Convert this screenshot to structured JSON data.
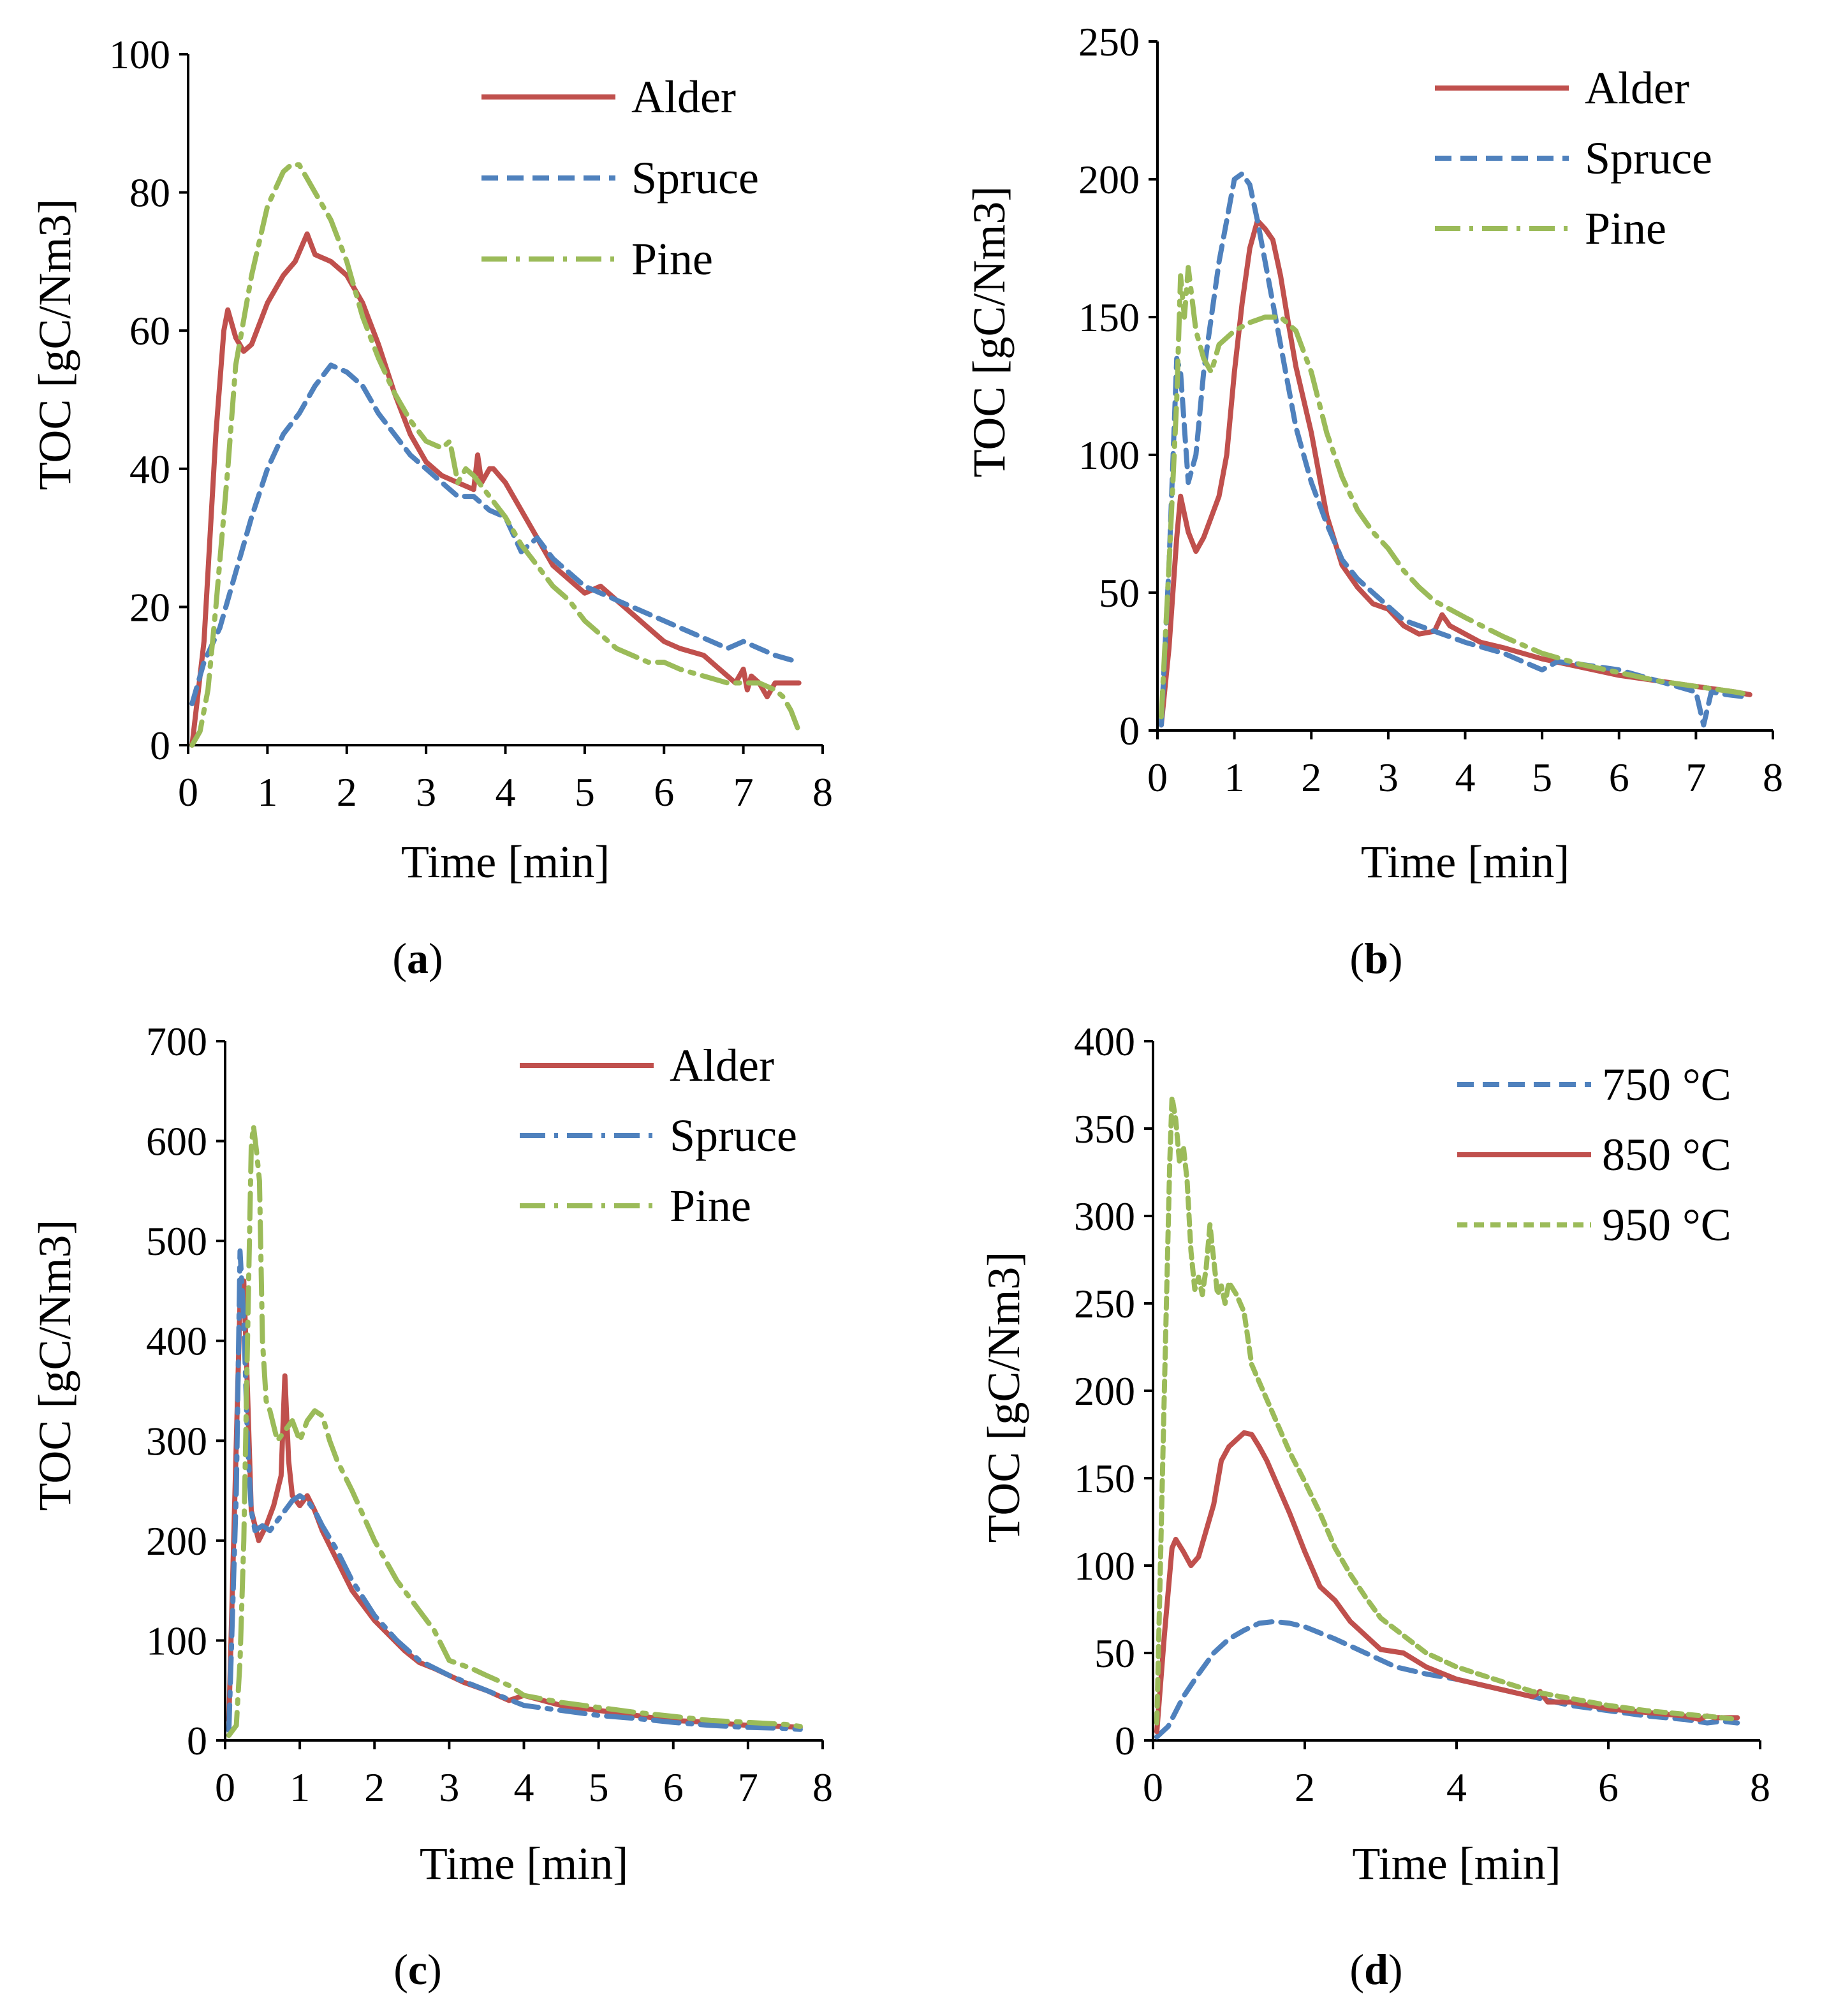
{
  "colors": {
    "alder": "#c0504d",
    "spruce": "#4f81bd",
    "pine": "#9bbb59"
  },
  "chart_data": [
    {
      "id": "a",
      "type": "line",
      "caption": "a",
      "xlabel": "Time [min]",
      "ylabel": "TOC [gC/Nm3]",
      "xlim": [
        0,
        8
      ],
      "ylim": [
        0,
        100
      ],
      "xticks": [
        0,
        1,
        2,
        3,
        4,
        5,
        6,
        7,
        8
      ],
      "yticks": [
        0,
        20,
        40,
        60,
        80,
        100
      ],
      "legend_position": "top-right",
      "series": [
        {
          "name": "Alder",
          "style": "solid",
          "color": "#c0504d",
          "x": [
            0.05,
            0.2,
            0.35,
            0.45,
            0.5,
            0.6,
            0.7,
            0.8,
            1.0,
            1.2,
            1.35,
            1.5,
            1.6,
            1.8,
            2.0,
            2.2,
            2.4,
            2.6,
            2.8,
            3.0,
            3.2,
            3.4,
            3.6,
            3.65,
            3.7,
            3.8,
            3.85,
            4.0,
            4.2,
            4.4,
            4.6,
            4.8,
            5.0,
            5.2,
            5.4,
            5.6,
            5.8,
            6.0,
            6.2,
            6.5,
            6.7,
            6.8,
            6.9,
            7.0,
            7.05,
            7.1,
            7.2,
            7.3,
            7.4,
            7.5,
            7.7
          ],
          "y": [
            0,
            15,
            45,
            60,
            63,
            59,
            57,
            58,
            64,
            68,
            70,
            74,
            71,
            70,
            68,
            64,
            58,
            51,
            45,
            41,
            39,
            38,
            37,
            42,
            38,
            40,
            40,
            38,
            34,
            30,
            26,
            24,
            22,
            23,
            21,
            19,
            17,
            15,
            14,
            13,
            11,
            10,
            9,
            11,
            8,
            10,
            9,
            7,
            9,
            9,
            9
          ]
        },
        {
          "name": "Spruce",
          "style": "dashed",
          "color": "#4f81bd",
          "x": [
            0.05,
            0.2,
            0.4,
            0.6,
            0.8,
            1.0,
            1.2,
            1.4,
            1.6,
            1.8,
            2.0,
            2.2,
            2.4,
            2.6,
            2.8,
            3.0,
            3.2,
            3.4,
            3.6,
            3.8,
            4.0,
            4.2,
            4.4,
            4.6,
            4.8,
            5.0,
            5.2,
            5.4,
            5.6,
            5.8,
            6.0,
            6.2,
            6.4,
            6.6,
            6.8,
            7.0,
            7.2,
            7.4,
            7.7
          ],
          "y": [
            6,
            12,
            17,
            25,
            33,
            40,
            45,
            48,
            52,
            55,
            54,
            52,
            48,
            45,
            42,
            40,
            38,
            36,
            36,
            34,
            33,
            28,
            30,
            27,
            25,
            23,
            22,
            21,
            20,
            19,
            18,
            17,
            16,
            15,
            14,
            15,
            14,
            13,
            12
          ]
        },
        {
          "name": "Pine",
          "style": "dashdot",
          "color": "#9bbb59",
          "x": [
            0.05,
            0.15,
            0.25,
            0.35,
            0.5,
            0.6,
            0.8,
            1.0,
            1.2,
            1.3,
            1.4,
            1.5,
            1.6,
            1.8,
            2.0,
            2.2,
            2.4,
            2.6,
            2.8,
            3.0,
            3.2,
            3.3,
            3.4,
            3.5,
            3.6,
            3.8,
            4.0,
            4.2,
            4.4,
            4.6,
            4.8,
            5.0,
            5.2,
            5.4,
            5.6,
            5.8,
            6.0,
            6.2,
            6.5,
            6.8,
            7.0,
            7.2,
            7.4,
            7.5,
            7.6,
            7.7
          ],
          "y": [
            0,
            2,
            8,
            20,
            40,
            55,
            68,
            78,
            83,
            84,
            84,
            82,
            80,
            76,
            70,
            62,
            56,
            51,
            47,
            44,
            43,
            44,
            38,
            40,
            39,
            36,
            33,
            29,
            26,
            23,
            21,
            18,
            16,
            14,
            13,
            12,
            12,
            11,
            10,
            9,
            9,
            9,
            8,
            7,
            5,
            2
          ]
        }
      ]
    },
    {
      "id": "b",
      "type": "line",
      "caption": "b",
      "xlabel": "Time [min]",
      "ylabel": "TOC [gC/Nm3]",
      "xlim": [
        0,
        8
      ],
      "ylim": [
        0,
        250
      ],
      "xticks": [
        0,
        1,
        2,
        3,
        4,
        5,
        6,
        7,
        8
      ],
      "yticks": [
        0,
        50,
        100,
        150,
        200,
        250
      ],
      "legend_position": "top-right",
      "series": [
        {
          "name": "Alder",
          "style": "solid",
          "color": "#c0504d",
          "x": [
            0.05,
            0.15,
            0.25,
            0.3,
            0.4,
            0.5,
            0.6,
            0.8,
            0.9,
            1.0,
            1.1,
            1.2,
            1.3,
            1.4,
            1.5,
            1.6,
            1.7,
            1.8,
            2.0,
            2.2,
            2.4,
            2.6,
            2.8,
            3.0,
            3.2,
            3.4,
            3.6,
            3.7,
            3.8,
            4.0,
            4.2,
            4.5,
            5.0,
            5.5,
            6.0,
            6.5,
            7.0,
            7.5,
            7.7
          ],
          "y": [
            2,
            30,
            70,
            85,
            72,
            65,
            70,
            85,
            100,
            130,
            155,
            175,
            185,
            182,
            178,
            165,
            148,
            132,
            108,
            78,
            60,
            52,
            46,
            44,
            38,
            35,
            36,
            42,
            38,
            35,
            32,
            30,
            26,
            23,
            20,
            18,
            16,
            14,
            13
          ]
        },
        {
          "name": "Spruce",
          "style": "dashed",
          "color": "#4f81bd",
          "x": [
            0.05,
            0.15,
            0.25,
            0.3,
            0.4,
            0.5,
            0.6,
            0.8,
            1.0,
            1.1,
            1.2,
            1.3,
            1.4,
            1.6,
            1.8,
            2.0,
            2.2,
            2.4,
            2.6,
            2.8,
            3.0,
            3.2,
            3.4,
            3.6,
            3.8,
            4.0,
            4.5,
            5.0,
            5.2,
            5.5,
            6.0,
            6.5,
            7.0,
            7.1,
            7.2,
            7.4,
            7.7
          ],
          "y": [
            2,
            60,
            135,
            130,
            90,
            100,
            130,
            170,
            200,
            202,
            198,
            185,
            170,
            140,
            110,
            90,
            75,
            62,
            55,
            50,
            45,
            40,
            38,
            36,
            34,
            32,
            28,
            22,
            25,
            24,
            22,
            18,
            14,
            2,
            14,
            13,
            12
          ]
        },
        {
          "name": "Pine",
          "style": "dashdot",
          "color": "#9bbb59",
          "x": [
            0.05,
            0.15,
            0.25,
            0.3,
            0.35,
            0.4,
            0.5,
            0.6,
            0.7,
            0.8,
            1.0,
            1.2,
            1.4,
            1.6,
            1.8,
            2.0,
            2.2,
            2.4,
            2.6,
            2.8,
            3.0,
            3.2,
            3.4,
            3.6,
            3.8,
            4.0,
            4.5,
            5.0,
            5.5,
            6.0,
            6.5,
            7.0,
            7.5,
            7.7
          ],
          "y": [
            5,
            60,
            120,
            165,
            150,
            168,
            145,
            135,
            130,
            140,
            145,
            148,
            150,
            150,
            145,
            130,
            108,
            92,
            80,
            72,
            66,
            58,
            52,
            47,
            44,
            41,
            34,
            28,
            24,
            21,
            18,
            16,
            14,
            13
          ]
        }
      ]
    },
    {
      "id": "c",
      "type": "line",
      "caption": "c",
      "xlabel": "Time [min]",
      "ylabel": "TOC [gC/Nm3]",
      "xlim": [
        0,
        8
      ],
      "ylim": [
        0,
        700
      ],
      "xticks": [
        0,
        1,
        2,
        3,
        4,
        5,
        6,
        7,
        8
      ],
      "yticks": [
        0,
        100,
        200,
        300,
        400,
        500,
        600,
        700
      ],
      "legend_position": "top-right",
      "series": [
        {
          "name": "Alder",
          "style": "solid",
          "color": "#c0504d",
          "x": [
            0.05,
            0.15,
            0.2,
            0.25,
            0.3,
            0.35,
            0.45,
            0.55,
            0.65,
            0.75,
            0.8,
            0.85,
            0.9,
            1.0,
            1.1,
            1.2,
            1.3,
            1.5,
            1.7,
            2.0,
            2.2,
            2.4,
            2.6,
            2.8,
            3.0,
            3.2,
            3.5,
            3.8,
            4.0,
            4.5,
            5.0,
            5.5,
            6.0,
            6.5,
            7.0,
            7.5,
            7.7
          ],
          "y": [
            20,
            300,
            440,
            460,
            350,
            230,
            200,
            215,
            235,
            265,
            365,
            280,
            245,
            235,
            245,
            230,
            210,
            180,
            150,
            120,
            105,
            90,
            78,
            72,
            65,
            58,
            50,
            40,
            45,
            35,
            30,
            25,
            20,
            18,
            15,
            14,
            13
          ]
        },
        {
          "name": "Spruce",
          "style": "dashdot",
          "color": "#4f81bd",
          "x": [
            0.05,
            0.15,
            0.2,
            0.25,
            0.3,
            0.35,
            0.4,
            0.5,
            0.6,
            0.7,
            0.8,
            0.9,
            1.0,
            1.1,
            1.2,
            1.3,
            1.5,
            1.7,
            2.0,
            2.3,
            2.6,
            3.0,
            3.5,
            4.0,
            4.5,
            5.0,
            5.5,
            6.0,
            6.5,
            7.0,
            7.5,
            7.7
          ],
          "y": [
            10,
            250,
            490,
            420,
            300,
            230,
            210,
            215,
            210,
            220,
            230,
            240,
            245,
            240,
            230,
            215,
            190,
            160,
            125,
            100,
            80,
            65,
            50,
            35,
            30,
            25,
            22,
            18,
            15,
            13,
            12,
            11
          ]
        },
        {
          "name": "Pine",
          "style": "dashdot",
          "color": "#9bbb59",
          "x": [
            0.05,
            0.15,
            0.2,
            0.25,
            0.3,
            0.35,
            0.38,
            0.42,
            0.46,
            0.5,
            0.55,
            0.6,
            0.7,
            0.8,
            0.9,
            1.0,
            1.1,
            1.2,
            1.3,
            1.4,
            1.5,
            1.7,
            2.0,
            2.3,
            2.6,
            2.8,
            3.0,
            3.3,
            3.5,
            3.8,
            4.0,
            4.5,
            5.0,
            5.5,
            6.0,
            6.5,
            7.0,
            7.5,
            7.7
          ],
          "y": [
            5,
            15,
            80,
            200,
            400,
            595,
            615,
            590,
            560,
            400,
            340,
            330,
            300,
            310,
            320,
            300,
            320,
            330,
            325,
            300,
            280,
            250,
            200,
            160,
            130,
            110,
            80,
            72,
            65,
            55,
            45,
            38,
            33,
            28,
            24,
            20,
            18,
            16,
            14
          ]
        }
      ]
    },
    {
      "id": "d",
      "type": "line",
      "caption": "d",
      "xlabel": "Time [min]",
      "ylabel": "TOC [gC/Nm3]",
      "xlim": [
        0,
        8
      ],
      "ylim": [
        0,
        400
      ],
      "xticks": [
        0,
        2,
        4,
        6,
        8
      ],
      "yticks": [
        0,
        50,
        100,
        150,
        200,
        250,
        300,
        350,
        400
      ],
      "legend_position": "top-right",
      "series": [
        {
          "name": "750 °C",
          "style": "dashed",
          "color": "#4f81bd",
          "x": [
            0.05,
            0.2,
            0.4,
            0.6,
            0.8,
            1.0,
            1.2,
            1.4,
            1.6,
            1.8,
            2.0,
            2.4,
            2.8,
            3.2,
            3.6,
            4.0,
            4.5,
            5.0,
            5.5,
            6.0,
            6.5,
            7.0,
            7.3,
            7.5,
            7.7
          ],
          "y": [
            2,
            8,
            25,
            38,
            50,
            58,
            63,
            67,
            68,
            67,
            65,
            58,
            50,
            42,
            38,
            35,
            30,
            25,
            20,
            17,
            14,
            12,
            10,
            11,
            10
          ]
        },
        {
          "name": "850 °C",
          "style": "solid",
          "color": "#c0504d",
          "x": [
            0.05,
            0.15,
            0.25,
            0.3,
            0.4,
            0.5,
            0.6,
            0.7,
            0.8,
            0.9,
            1.0,
            1.1,
            1.2,
            1.3,
            1.4,
            1.5,
            1.6,
            1.8,
            2.0,
            2.2,
            2.4,
            2.6,
            2.8,
            3.0,
            3.3,
            3.6,
            4.0,
            4.5,
            5.0,
            5.1,
            5.2,
            5.5,
            6.0,
            6.5,
            7.0,
            7.2,
            7.3,
            7.4,
            7.7
          ],
          "y": [
            5,
            60,
            110,
            115,
            108,
            100,
            105,
            120,
            135,
            160,
            168,
            172,
            176,
            175,
            168,
            160,
            150,
            130,
            108,
            88,
            80,
            68,
            60,
            52,
            50,
            42,
            35,
            30,
            25,
            28,
            22,
            22,
            18,
            16,
            14,
            12,
            14,
            13,
            13
          ]
        },
        {
          "name": "950 °C",
          "style": "shortdash",
          "color": "#9bbb59",
          "x": [
            0.05,
            0.15,
            0.22,
            0.25,
            0.3,
            0.35,
            0.4,
            0.45,
            0.5,
            0.55,
            0.6,
            0.65,
            0.7,
            0.75,
            0.8,
            0.85,
            0.9,
            0.95,
            1.0,
            1.1,
            1.2,
            1.3,
            1.4,
            1.6,
            1.8,
            2.0,
            2.2,
            2.4,
            2.6,
            2.8,
            3.0,
            3.3,
            3.6,
            4.0,
            4.5,
            5.0,
            5.5,
            6.0,
            6.5,
            7.0,
            7.5,
            7.7
          ],
          "y": [
            10,
            200,
            330,
            368,
            355,
            330,
            340,
            320,
            280,
            258,
            265,
            255,
            270,
            295,
            275,
            255,
            260,
            250,
            262,
            255,
            245,
            215,
            205,
            185,
            165,
            148,
            130,
            110,
            95,
            82,
            70,
            60,
            50,
            42,
            35,
            28,
            24,
            20,
            17,
            15,
            13,
            12
          ]
        }
      ]
    }
  ]
}
